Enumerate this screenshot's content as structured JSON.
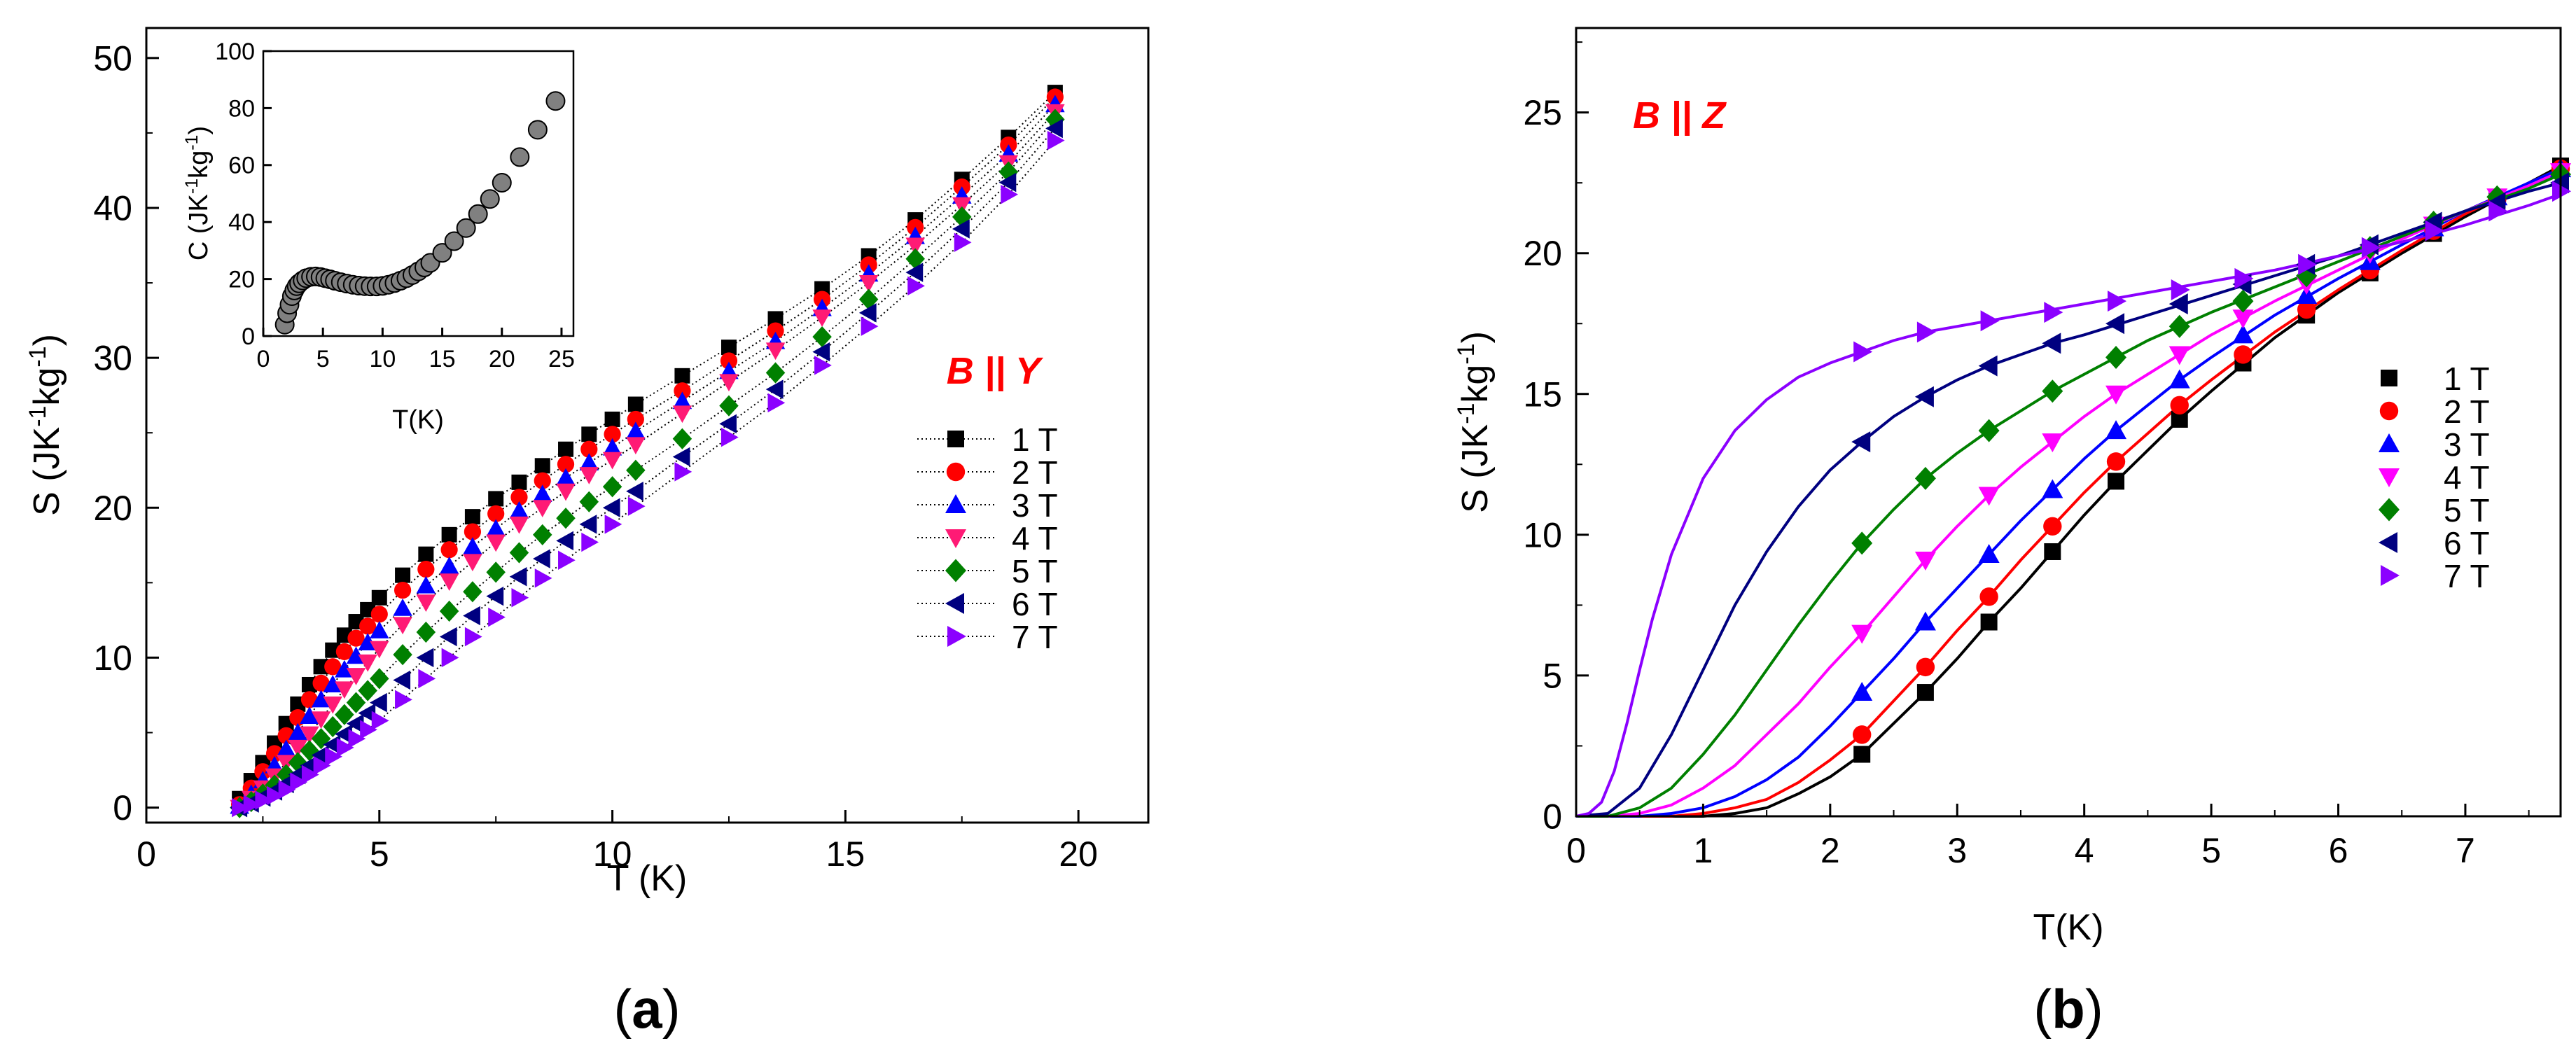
{
  "panels": [
    {
      "label": "(a)",
      "label_open": "(",
      "label_letter": "a",
      "label_close": ")"
    },
    {
      "label": "(b)",
      "label_open": "(",
      "label_letter": "b",
      "label_close": ")"
    }
  ],
  "colors": {
    "1 T": "#000000",
    "2 T": "#ff0000",
    "3 T": "#0000ff",
    "4 T": "#ff00ff",
    "4 T (a)": "#ff1a75",
    "5 T": "#008000",
    "6 T": "#000080",
    "7 T": "#8b00ff",
    "inset": "#808080",
    "annotation": "#ff0000"
  },
  "chart_data": [
    {
      "panel": "a",
      "type": "scatter",
      "style": "markers joined by dotted lines",
      "title": "",
      "annotation": "B || Y",
      "annotation_parts": [
        "B",
        " || ",
        "Y"
      ],
      "xlabel": "T (K)",
      "ylabel_parts": [
        "S (JK",
        "-1",
        "kg",
        "-1",
        ")"
      ],
      "xlim": [
        0,
        21.5
      ],
      "ylim": [
        -1,
        52
      ],
      "xticks": [
        "0",
        "5",
        "10",
        "15",
        "20"
      ],
      "yticks": [
        "0",
        "10",
        "20",
        "30",
        "40",
        "50"
      ],
      "x": [
        2,
        2.25,
        2.5,
        2.75,
        3,
        3.25,
        3.5,
        3.75,
        4,
        4.25,
        4.5,
        4.75,
        5,
        5.5,
        6,
        6.5,
        7,
        7.5,
        8,
        8.5,
        9,
        9.5,
        10,
        10.5,
        11.5,
        12.5,
        13.5,
        14.5,
        15.5,
        16.5,
        17.5,
        18.5,
        19.5
      ],
      "series": [
        {
          "name": "1 T",
          "marker": "square",
          "values": [
            0.6,
            1.8,
            3.0,
            4.3,
            5.6,
            6.9,
            8.2,
            9.4,
            10.5,
            11.5,
            12.4,
            13.2,
            14.0,
            15.5,
            16.9,
            18.2,
            19.4,
            20.6,
            21.7,
            22.8,
            23.9,
            24.9,
            25.9,
            26.9,
            28.8,
            30.7,
            32.6,
            34.6,
            36.8,
            39.2,
            41.9,
            44.7,
            47.7
          ]
        },
        {
          "name": "2 T",
          "marker": "circle",
          "values": [
            0.2,
            1.3,
            2.4,
            3.6,
            4.8,
            6.0,
            7.2,
            8.3,
            9.4,
            10.4,
            11.3,
            12.1,
            12.9,
            14.5,
            15.9,
            17.2,
            18.4,
            19.6,
            20.7,
            21.8,
            22.9,
            23.9,
            24.9,
            25.9,
            27.8,
            29.8,
            31.8,
            33.9,
            36.2,
            38.7,
            41.4,
            44.2,
            47.4
          ]
        },
        {
          "name": "3 T",
          "marker": "triangle-up",
          "values": [
            0.1,
            0.9,
            1.8,
            2.8,
            3.9,
            5.0,
            6.1,
            7.2,
            8.2,
            9.2,
            10.1,
            11.0,
            11.8,
            13.3,
            14.8,
            16.1,
            17.4,
            18.6,
            19.8,
            20.9,
            22.0,
            23.0,
            24.0,
            25.1,
            27.1,
            29.1,
            31.1,
            33.3,
            35.6,
            38.1,
            40.8,
            43.6,
            46.9
          ]
        },
        {
          "name": "4 T",
          "marker": "triangle-down",
          "values": [
            0.0,
            0.6,
            1.3,
            2.1,
            3.0,
            4.0,
            4.9,
            5.9,
            6.9,
            7.9,
            8.8,
            9.7,
            10.6,
            12.2,
            13.7,
            15.1,
            16.4,
            17.7,
            18.9,
            20.0,
            21.1,
            22.2,
            23.2,
            24.2,
            26.3,
            28.4,
            30.5,
            32.7,
            35.0,
            37.5,
            40.2,
            43.0,
            46.4
          ]
        },
        {
          "name": "5 T",
          "marker": "diamond",
          "values": [
            0.0,
            0.4,
            0.9,
            1.5,
            2.2,
            3.0,
            3.8,
            4.6,
            5.4,
            6.2,
            7.0,
            7.8,
            8.6,
            10.2,
            11.7,
            13.1,
            14.4,
            15.7,
            17.0,
            18.2,
            19.3,
            20.4,
            21.4,
            22.5,
            24.6,
            26.8,
            29.0,
            31.4,
            33.9,
            36.6,
            39.4,
            42.4,
            45.9
          ]
        },
        {
          "name": "6 T",
          "marker": "triangle-left",
          "values": [
            0.0,
            0.3,
            0.7,
            1.1,
            1.6,
            2.2,
            2.8,
            3.5,
            4.2,
            4.9,
            5.6,
            6.3,
            7.0,
            8.5,
            10.0,
            11.4,
            12.8,
            14.1,
            15.4,
            16.6,
            17.8,
            18.9,
            20.0,
            21.1,
            23.4,
            25.6,
            27.9,
            30.4,
            33.0,
            35.7,
            38.6,
            41.7,
            45.3
          ]
        },
        {
          "name": "7 T",
          "marker": "triangle-right",
          "values": [
            0.0,
            0.2,
            0.5,
            0.8,
            1.2,
            1.7,
            2.2,
            2.8,
            3.4,
            4.0,
            4.6,
            5.2,
            5.8,
            7.2,
            8.6,
            10.0,
            11.4,
            12.7,
            14.0,
            15.3,
            16.5,
            17.7,
            18.9,
            20.1,
            22.4,
            24.7,
            27.0,
            29.5,
            32.1,
            34.8,
            37.7,
            40.9,
            44.5
          ]
        }
      ],
      "inset": {
        "type": "scatter",
        "xlabel": "T(K)",
        "ylabel_parts": [
          "C (JK",
          "-1",
          "kg",
          "-1",
          ")"
        ],
        "xlim": [
          0,
          26
        ],
        "ylim": [
          0,
          100
        ],
        "xticks": [
          "0",
          "5",
          "10",
          "15",
          "20",
          "25"
        ],
        "yticks": [
          "0",
          "20",
          "40",
          "60",
          "80",
          "100"
        ],
        "x": [
          1.8,
          2.0,
          2.2,
          2.4,
          2.6,
          2.8,
          3.0,
          3.3,
          3.6,
          4.0,
          4.4,
          4.8,
          5.2,
          5.6,
          6.0,
          6.5,
          7.0,
          7.5,
          8.0,
          8.5,
          9.0,
          9.5,
          10.0,
          10.5,
          11.0,
          11.5,
          12.0,
          12.5,
          13.0,
          13.5,
          14.0,
          15.0,
          16.0,
          17.0,
          18.0,
          19.0,
          20.0,
          21.5,
          23.0,
          24.5
        ],
        "values": [
          4,
          8,
          11,
          14,
          16,
          17.5,
          18.5,
          19.5,
          20.3,
          20.8,
          20.9,
          20.7,
          20.3,
          19.9,
          19.4,
          18.9,
          18.4,
          18.0,
          17.7,
          17.5,
          17.4,
          17.4,
          17.6,
          18.0,
          18.6,
          19.4,
          20.3,
          21.4,
          22.7,
          24.1,
          25.7,
          29.2,
          33.3,
          37.9,
          42.8,
          48.1,
          53.8,
          62.8,
          72.4,
          82.5
        ]
      }
    },
    {
      "panel": "b",
      "type": "scatter",
      "style": "markers with solid fitted curves",
      "title": "",
      "annotation": "B || Z",
      "annotation_parts": [
        "B",
        " || ",
        "Z"
      ],
      "xlabel": "T(K)",
      "ylabel_parts": [
        "S (JK",
        "-1",
        "kg",
        "-1",
        ")"
      ],
      "xlim": [
        0,
        7.75
      ],
      "ylim": [
        0,
        28
      ],
      "xticks": [
        "0",
        "1",
        "2",
        "3",
        "4",
        "5",
        "6",
        "7"
      ],
      "yticks": [
        "0",
        "5",
        "10",
        "15",
        "20",
        "25"
      ],
      "x": [
        2.25,
        2.75,
        3.25,
        3.75,
        4.25,
        4.75,
        5.25,
        5.75,
        6.25,
        6.75,
        7.25,
        7.75
      ],
      "series": [
        {
          "name": "1 T",
          "marker": "square",
          "values": [
            2.2,
            4.4,
            6.9,
            9.4,
            11.9,
            14.1,
            16.1,
            17.8,
            19.3,
            20.7,
            21.9,
            23.1
          ]
        },
        {
          "name": "2 T",
          "marker": "circle",
          "values": [
            2.9,
            5.3,
            7.8,
            10.3,
            12.6,
            14.6,
            16.4,
            18.0,
            19.4,
            20.8,
            21.9,
            23.0
          ]
        },
        {
          "name": "3 T",
          "marker": "triangle-up",
          "values": [
            4.4,
            6.9,
            9.3,
            11.6,
            13.7,
            15.5,
            17.1,
            18.5,
            19.7,
            20.9,
            22.0,
            23.0
          ]
        },
        {
          "name": "4 T",
          "marker": "triangle-down",
          "values": [
            6.5,
            9.1,
            11.4,
            13.3,
            15.0,
            16.4,
            17.7,
            18.9,
            20.0,
            21.0,
            22.0,
            22.9
          ]
        },
        {
          "name": "5 T",
          "marker": "diamond",
          "values": [
            9.7,
            12.0,
            13.7,
            15.1,
            16.3,
            17.4,
            18.3,
            19.2,
            20.2,
            21.1,
            22.0,
            22.8
          ]
        },
        {
          "name": "6 T",
          "marker": "triangle-left",
          "values": [
            13.3,
            14.9,
            16.0,
            16.8,
            17.5,
            18.2,
            18.9,
            19.6,
            20.3,
            21.1,
            21.8,
            22.5
          ]
        },
        {
          "name": "7 T",
          "marker": "triangle-right",
          "values": [
            16.5,
            17.2,
            17.6,
            17.9,
            18.3,
            18.7,
            19.1,
            19.6,
            20.2,
            20.8,
            21.5,
            22.2
          ]
        }
      ],
      "curves": [
        {
          "name": "1 T",
          "x": [
            0,
            0.5,
            1.0,
            1.25,
            1.5,
            1.75,
            2.0,
            2.25,
            2.5,
            2.75,
            3.0,
            3.25,
            3.5,
            3.75,
            4.0,
            4.25,
            4.5,
            4.75,
            5.0,
            5.5,
            6.0,
            6.5,
            7.0,
            7.5,
            7.75
          ],
          "values": [
            0,
            0,
            0,
            0.1,
            0.3,
            0.8,
            1.4,
            2.2,
            3.3,
            4.4,
            5.6,
            6.9,
            8.1,
            9.4,
            10.7,
            11.9,
            13.0,
            14.1,
            15.1,
            17.0,
            18.6,
            20.0,
            21.3,
            22.5,
            23.1
          ]
        },
        {
          "name": "2 T",
          "x": [
            0,
            0.5,
            0.75,
            1.0,
            1.25,
            1.5,
            1.75,
            2.0,
            2.25,
            2.5,
            2.75,
            3.0,
            3.25,
            3.5,
            3.75,
            4.0,
            4.25,
            4.5,
            4.75,
            5.0,
            5.5,
            6.0,
            6.5,
            7.0,
            7.5,
            7.75
          ],
          "values": [
            0,
            0,
            0,
            0.1,
            0.3,
            0.6,
            1.2,
            2.0,
            2.9,
            4.1,
            5.3,
            6.6,
            7.8,
            9.1,
            10.3,
            11.5,
            12.6,
            13.6,
            14.6,
            15.5,
            17.2,
            18.7,
            20.1,
            21.4,
            22.5,
            23.0
          ]
        },
        {
          "name": "3 T",
          "x": [
            0,
            0.5,
            0.75,
            1.0,
            1.25,
            1.5,
            1.75,
            2.0,
            2.25,
            2.5,
            2.75,
            3.0,
            3.25,
            3.5,
            3.75,
            4.0,
            4.25,
            4.5,
            4.75,
            5.0,
            5.5,
            6.0,
            6.5,
            7.0,
            7.5,
            7.75
          ],
          "values": [
            0,
            0,
            0.1,
            0.3,
            0.7,
            1.3,
            2.1,
            3.2,
            4.4,
            5.6,
            6.9,
            8.1,
            9.3,
            10.5,
            11.6,
            12.7,
            13.7,
            14.6,
            15.5,
            16.3,
            17.8,
            19.1,
            20.3,
            21.5,
            22.5,
            23.0
          ]
        },
        {
          "name": "4 T",
          "x": [
            0,
            0.25,
            0.5,
            0.75,
            1.0,
            1.25,
            1.5,
            1.75,
            2.0,
            2.25,
            2.5,
            2.75,
            3.0,
            3.25,
            3.5,
            3.75,
            4.0,
            4.25,
            4.5,
            4.75,
            5.0,
            5.5,
            6.0,
            6.5,
            7.0,
            7.5,
            7.75
          ],
          "values": [
            0,
            0,
            0.1,
            0.4,
            1.0,
            1.8,
            2.9,
            4.0,
            5.3,
            6.5,
            7.8,
            9.1,
            10.3,
            11.4,
            12.4,
            13.3,
            14.2,
            15.0,
            15.7,
            16.4,
            17.1,
            18.3,
            19.4,
            20.5,
            21.5,
            22.4,
            22.9
          ]
        },
        {
          "name": "5 T",
          "x": [
            0,
            0.25,
            0.5,
            0.75,
            1.0,
            1.25,
            1.5,
            1.75,
            2.0,
            2.25,
            2.5,
            2.75,
            3.0,
            3.25,
            3.5,
            3.75,
            4.0,
            4.25,
            4.5,
            4.75,
            5.0,
            5.5,
            6.0,
            6.5,
            7.0,
            7.5,
            7.75
          ],
          "values": [
            0,
            0,
            0.3,
            1.0,
            2.2,
            3.6,
            5.2,
            6.8,
            8.3,
            9.7,
            10.9,
            12.0,
            12.9,
            13.7,
            14.4,
            15.1,
            15.7,
            16.3,
            16.9,
            17.4,
            17.9,
            18.8,
            19.7,
            20.6,
            21.5,
            22.3,
            22.8
          ]
        },
        {
          "name": "6 T",
          "x": [
            0,
            0.25,
            0.5,
            0.75,
            1.0,
            1.25,
            1.5,
            1.75,
            2.0,
            2.25,
            2.5,
            2.75,
            3.0,
            3.25,
            3.5,
            3.75,
            4.0,
            4.5,
            5.0,
            5.5,
            6.0,
            6.5,
            7.0,
            7.5,
            7.75
          ],
          "values": [
            0,
            0.1,
            1.0,
            2.9,
            5.2,
            7.5,
            9.4,
            11.0,
            12.3,
            13.3,
            14.2,
            14.9,
            15.5,
            16.0,
            16.4,
            16.8,
            17.1,
            17.8,
            18.5,
            19.2,
            19.9,
            20.7,
            21.5,
            22.2,
            22.5
          ]
        },
        {
          "name": "7 T",
          "x": [
            0,
            0.1,
            0.2,
            0.3,
            0.4,
            0.5,
            0.6,
            0.75,
            1.0,
            1.25,
            1.5,
            1.75,
            2.0,
            2.25,
            2.5,
            2.75,
            3.0,
            3.5,
            4.0,
            4.5,
            5.0,
            5.5,
            6.0,
            6.5,
            7.0,
            7.5,
            7.75
          ],
          "values": [
            0,
            0.1,
            0.5,
            1.6,
            3.3,
            5.2,
            7.0,
            9.3,
            12.0,
            13.7,
            14.8,
            15.6,
            16.1,
            16.5,
            16.9,
            17.2,
            17.4,
            17.8,
            18.2,
            18.6,
            19.0,
            19.4,
            19.9,
            20.4,
            21.0,
            21.7,
            22.1
          ]
        }
      ]
    }
  ]
}
